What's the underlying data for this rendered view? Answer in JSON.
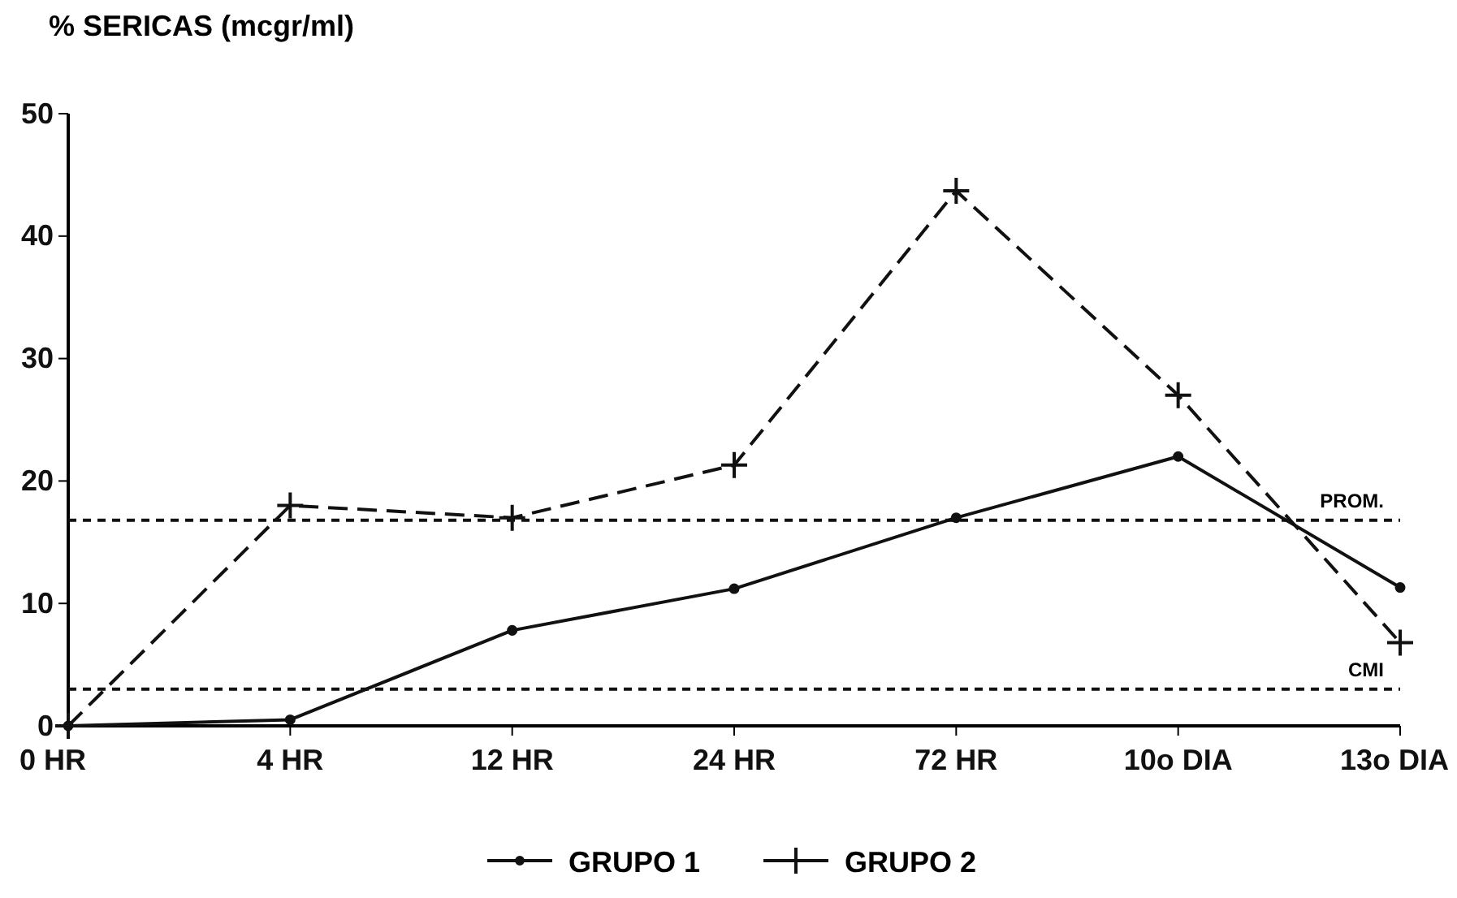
{
  "chart_data": {
    "type": "line",
    "ylabel": "% SERICAS (mcgr/ml)",
    "categories": [
      "0 HR",
      "4 HR",
      "12 HR",
      "24 HR",
      "72 HR",
      "10o DIA",
      "13o DIA"
    ],
    "series": [
      {
        "name": "GRUPO 1",
        "color": "#111111",
        "marker": "circle",
        "line_style": "solid",
        "values": [
          0,
          0.5,
          7.8,
          11.2,
          17,
          22,
          11.3
        ]
      },
      {
        "name": "GRUPO 2",
        "color": "#111111",
        "marker": "cross",
        "line_style": "dashed",
        "values": [
          0,
          18,
          17,
          21.3,
          43.7,
          27,
          6.8
        ]
      }
    ],
    "ylim": [
      0,
      50
    ],
    "yticks": [
      0,
      10,
      20,
      30,
      40,
      50
    ],
    "ref_lines": [
      {
        "axis": "y",
        "value": 16.8,
        "label": "PROM.",
        "line_style": "dashed"
      },
      {
        "axis": "y",
        "value": 3,
        "label": "CMI",
        "line_style": "dashed"
      }
    ],
    "legend": "bottom",
    "grid": false
  }
}
